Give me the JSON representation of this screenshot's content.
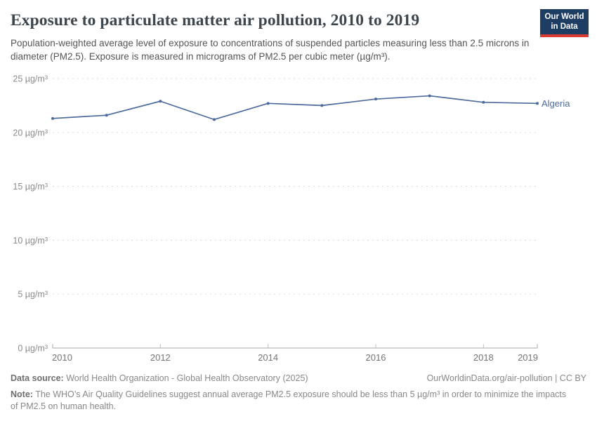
{
  "header": {
    "title": "Exposure to particulate matter air pollution, 2010 to 2019",
    "subtitle": "Population-weighted average level of exposure to concentrations of suspended particles measuring less than 2.5 microns in diameter (PM2.5). Exposure is measured in micrograms of PM2.5 per cubic meter (µg/m³).",
    "logo": {
      "line1": "Our World",
      "line2": "in Data"
    }
  },
  "chart_data": {
    "type": "line",
    "title": "Exposure to particulate matter air pollution, 2010 to 2019",
    "x": [
      2010,
      2011,
      2012,
      2013,
      2014,
      2015,
      2016,
      2017,
      2018,
      2019
    ],
    "series": [
      {
        "name": "Algeria",
        "values": [
          21.3,
          21.6,
          22.9,
          21.2,
          22.7,
          22.5,
          23.1,
          23.4,
          22.8,
          22.7
        ]
      }
    ],
    "xlabel": "",
    "ylabel": "",
    "ylim": [
      0,
      25
    ],
    "y_ticks": [
      0,
      5,
      10,
      15,
      20,
      25
    ],
    "y_tick_suffix": " µg/m³",
    "x_ticks": [
      2010,
      2012,
      2014,
      2016,
      2018,
      2019
    ],
    "grid": "horizontal-dashed",
    "legend_position": "end-of-line",
    "line_color": "#4C6A9C",
    "grid_color": "#dadada",
    "axis_color": "#a8a8a8",
    "tick_label_color": "#8b8b8b"
  },
  "footer": {
    "datasource_label": "Data source:",
    "datasource_text": " World Health Organization - Global Health Observatory (2025)",
    "link": "OurWorldinData.org/air-pollution | CC BY",
    "note_label": "Note:",
    "note_text": " The WHO’s Air Quality Guidelines suggest annual average PM2.5 exposure should be less than 5 µg/m³ in order to minimize the impacts of PM2.5 on human health."
  }
}
